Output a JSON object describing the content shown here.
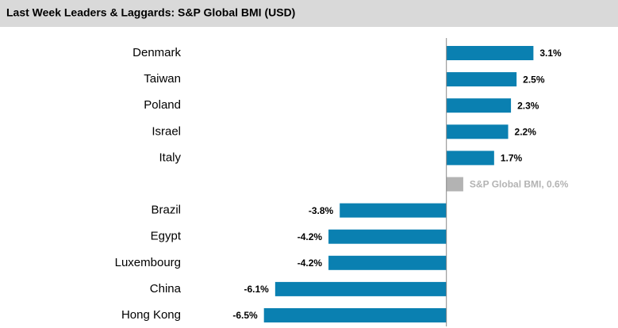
{
  "chart_data": {
    "type": "barh",
    "title": "Last Week Leaders & Laggards: S&P Global BMI (USD)",
    "categories": [
      "Denmark",
      "Taiwan",
      "Poland",
      "Israel",
      "Italy",
      null,
      "Brazil",
      "Egypt",
      "Luxembourg",
      "China",
      "Hong Kong"
    ],
    "values": [
      3.1,
      2.5,
      2.3,
      2.2,
      1.7,
      0.6,
      -3.8,
      -4.2,
      -4.2,
      -6.1,
      -6.5
    ],
    "value_labels": [
      "3.1%",
      "2.5%",
      "2.3%",
      "2.2%",
      "1.7%",
      "S&P Global BMI, 0.6%",
      "-3.8%",
      "-4.2%",
      "-4.2%",
      "-6.1%",
      "-6.5%"
    ],
    "color": "#0a80b1",
    "colors": [
      "#0a80b1",
      "#0a80b1",
      "#0a80b1",
      "#0a80b1",
      "#0a80b1",
      "#b3b3b3",
      "#0a80b1",
      "#0a80b1",
      "#0a80b1",
      "#0a80b1",
      "#0a80b1"
    ],
    "xlim": [
      -7,
      6
    ]
  }
}
